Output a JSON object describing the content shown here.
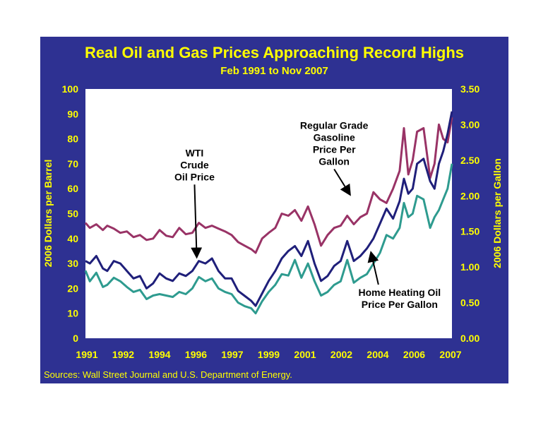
{
  "colors": {
    "background": "#2e3192",
    "text": "#ffff00",
    "wti": "#1f1f7a",
    "gasoline": "#993366",
    "heating_oil": "#2e9b8f"
  },
  "chart_data": {
    "type": "line",
    "title": "Real Oil and Gas Prices Approaching Record Highs",
    "subtitle": "Feb 1991 to Nov 2007",
    "ylabel_left": "2006 Dollars per Barrel",
    "ylabel_right": "2006 Dollars per Gallon",
    "source": "Sources: Wall Street Journal and U.S. Department of Energy.",
    "x_tick_labels": [
      "1991",
      "1992",
      "1994",
      "1996",
      "1997",
      "1999",
      "2001",
      "2002",
      "2004",
      "2006",
      "2007"
    ],
    "x_range": [
      1991.1,
      2007.9
    ],
    "y_left": {
      "range": [
        0,
        100
      ],
      "ticks": [
        "0",
        "10",
        "20",
        "30",
        "40",
        "50",
        "60",
        "70",
        "80",
        "90",
        "100"
      ]
    },
    "y_right": {
      "range": [
        0,
        3.5
      ],
      "ticks": [
        "0.00",
        "0.50",
        "1.00",
        "1.50",
        "2.00",
        "2.50",
        "3.00",
        "3.50"
      ]
    },
    "series": [
      {
        "name": "Regular Grade Gasoline Price Per Gallon",
        "axis": "right",
        "color": "#993366",
        "x": [
          1991.1,
          1991.3,
          1991.6,
          1991.9,
          1992.1,
          1992.4,
          1992.7,
          1993.0,
          1993.3,
          1993.6,
          1993.9,
          1994.2,
          1994.5,
          1994.8,
          1995.1,
          1995.4,
          1995.7,
          1996.0,
          1996.3,
          1996.6,
          1996.9,
          1997.2,
          1997.5,
          1997.8,
          1998.1,
          1998.4,
          1998.7,
          1998.9,
          1999.2,
          1999.5,
          1999.8,
          2000.1,
          2000.4,
          2000.7,
          2001.0,
          2001.3,
          2001.6,
          2001.9,
          2002.2,
          2002.5,
          2002.8,
          2003.1,
          2003.4,
          2003.7,
          2004.0,
          2004.3,
          2004.6,
          2004.9,
          2005.2,
          2005.5,
          2005.7,
          2005.9,
          2006.1,
          2006.3,
          2006.6,
          2006.9,
          2007.1,
          2007.3,
          2007.5,
          2007.7,
          2007.9
        ],
        "values": [
          1.62,
          1.55,
          1.6,
          1.52,
          1.58,
          1.54,
          1.48,
          1.5,
          1.42,
          1.45,
          1.38,
          1.4,
          1.52,
          1.44,
          1.42,
          1.55,
          1.46,
          1.48,
          1.62,
          1.55,
          1.58,
          1.54,
          1.5,
          1.45,
          1.35,
          1.3,
          1.25,
          1.2,
          1.4,
          1.48,
          1.55,
          1.75,
          1.72,
          1.8,
          1.65,
          1.85,
          1.6,
          1.3,
          1.45,
          1.55,
          1.58,
          1.72,
          1.6,
          1.7,
          1.75,
          2.05,
          1.95,
          1.9,
          2.1,
          2.35,
          2.95,
          2.3,
          2.5,
          2.9,
          2.95,
          2.25,
          2.45,
          3.0,
          2.8,
          2.75,
          3.1
        ]
      },
      {
        "name": "WTI Crude Oil Price",
        "axis": "left",
        "color": "#1f1f7a",
        "x": [
          1991.1,
          1991.3,
          1991.6,
          1991.9,
          1992.1,
          1992.4,
          1992.7,
          1993.0,
          1993.3,
          1993.6,
          1993.9,
          1994.2,
          1994.5,
          1994.8,
          1995.1,
          1995.4,
          1995.7,
          1996.0,
          1996.3,
          1996.6,
          1996.9,
          1997.2,
          1997.5,
          1997.8,
          1998.1,
          1998.4,
          1998.7,
          1998.9,
          1999.2,
          1999.5,
          1999.8,
          2000.1,
          2000.4,
          2000.7,
          2001.0,
          2001.3,
          2001.6,
          2001.9,
          2002.2,
          2002.5,
          2002.8,
          2003.1,
          2003.4,
          2003.7,
          2004.0,
          2004.3,
          2004.6,
          2004.9,
          2005.2,
          2005.5,
          2005.7,
          2005.9,
          2006.1,
          2006.3,
          2006.6,
          2006.9,
          2007.1,
          2007.3,
          2007.5,
          2007.7,
          2007.9
        ],
        "values": [
          31,
          30,
          33,
          28,
          27,
          31,
          30,
          27,
          24,
          25,
          20,
          22,
          26,
          24,
          23,
          26,
          25,
          27,
          31,
          30,
          32,
          27,
          24,
          24,
          19,
          17,
          15,
          13,
          18,
          23,
          27,
          32,
          35,
          37,
          33,
          39,
          30,
          23,
          25,
          29,
          31,
          39,
          31,
          33,
          36,
          40,
          46,
          52,
          48,
          55,
          64,
          58,
          60,
          70,
          72,
          63,
          60,
          70,
          75,
          82,
          91
        ]
      },
      {
        "name": "Home Heating Oil Price Per Gallon",
        "axis": "right",
        "color": "#2e9b8f",
        "x": [
          1991.1,
          1991.3,
          1991.6,
          1991.9,
          1992.1,
          1992.4,
          1992.7,
          1993.0,
          1993.3,
          1993.6,
          1993.9,
          1994.2,
          1994.5,
          1994.8,
          1995.1,
          1995.4,
          1995.7,
          1996.0,
          1996.3,
          1996.6,
          1996.9,
          1997.2,
          1997.5,
          1997.8,
          1998.1,
          1998.4,
          1998.7,
          1998.9,
          1999.2,
          1999.5,
          1999.8,
          2000.1,
          2000.4,
          2000.7,
          2001.0,
          2001.3,
          2001.6,
          2001.9,
          2002.2,
          2002.5,
          2002.8,
          2003.1,
          2003.4,
          2003.7,
          2004.0,
          2004.3,
          2004.6,
          2004.9,
          2005.2,
          2005.5,
          2005.7,
          2005.9,
          2006.1,
          2006.3,
          2006.6,
          2006.9,
          2007.1,
          2007.3,
          2007.5,
          2007.7,
          2007.9
        ],
        "values": [
          0.95,
          0.8,
          0.92,
          0.72,
          0.75,
          0.85,
          0.8,
          0.72,
          0.65,
          0.68,
          0.55,
          0.6,
          0.62,
          0.6,
          0.58,
          0.65,
          0.62,
          0.7,
          0.86,
          0.8,
          0.84,
          0.7,
          0.65,
          0.62,
          0.5,
          0.45,
          0.42,
          0.35,
          0.52,
          0.65,
          0.75,
          0.9,
          0.88,
          1.1,
          0.85,
          1.05,
          0.8,
          0.6,
          0.65,
          0.75,
          0.8,
          1.1,
          0.78,
          0.85,
          0.9,
          1.05,
          1.2,
          1.45,
          1.4,
          1.55,
          1.9,
          1.7,
          1.75,
          2.0,
          1.95,
          1.55,
          1.7,
          1.8,
          1.95,
          2.1,
          2.45
        ]
      }
    ],
    "annotations": [
      {
        "lines": [
          "WTI",
          "Crude",
          "Oil Price"
        ],
        "x": 1996.1,
        "y": 73,
        "arrow_to": [
          1996.2,
          33
        ]
      },
      {
        "lines": [
          "Regular Grade",
          "Gasoline",
          "Price Per",
          "Gallon"
        ],
        "x": 2002.5,
        "y": 84,
        "arrow_to": [
          2003.2,
          58
        ]
      },
      {
        "lines": [
          "Home Heating Oil",
          "Price Per Gallon"
        ],
        "x": 2005.5,
        "y": 17,
        "arrow_to": [
          2004.2,
          34
        ]
      }
    ]
  }
}
